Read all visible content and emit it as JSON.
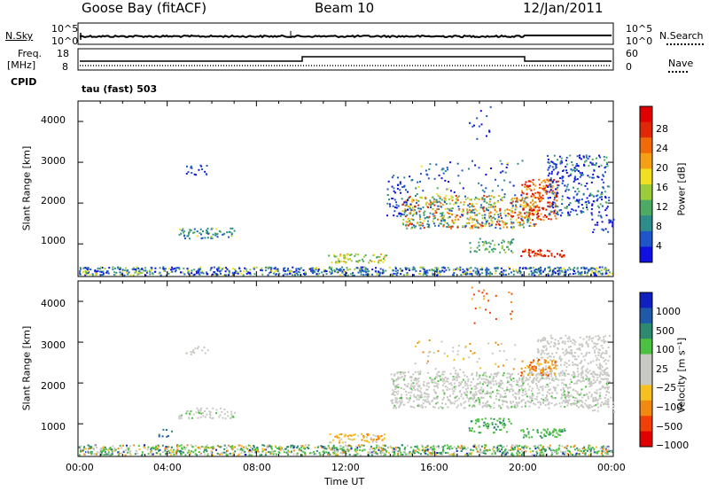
{
  "header": {
    "station": "Goose Bay (fitACF)",
    "beam": "Beam 10",
    "date": "12/Jan/2011"
  },
  "nsky_panel": {
    "left_label": "N.Sky",
    "right_label": "N.Search",
    "left_ticks": [
      "10^5",
      "10^0"
    ],
    "right_ticks": [
      "10^5",
      "10^0"
    ]
  },
  "freq_panel": {
    "left_label_1": "Freq.",
    "left_label_2": "[MHz]",
    "right_label": "Nave",
    "left_ticks": [
      "18",
      "8"
    ],
    "right_ticks": [
      "60",
      "0"
    ]
  },
  "cpid": {
    "label": "CPID",
    "mode": "tau (fast) 503"
  },
  "colors": {
    "power_scale": [
      "#1010e0",
      "#1e55c8",
      "#2e8c8a",
      "#4caa64",
      "#9ccc3c",
      "#f0e020",
      "#f5a014",
      "#f06a0a",
      "#e02808",
      "#e00000"
    ],
    "velocity_scale": [
      "#1020c0",
      "#1e5aa8",
      "#2e8a6e",
      "#4cc040",
      "#c8c8c4",
      "#c8c8c4",
      "#f5c020",
      "#f08a10",
      "#f04008",
      "#e00000"
    ]
  },
  "chart_data": [
    {
      "type": "heatmap",
      "name_role": "power",
      "title": "",
      "xlabel": "",
      "ylabel": "Slant Range [km]",
      "ylim": [
        200,
        4500
      ],
      "xlim": [
        0,
        24
      ],
      "yticks": [
        "4000",
        "3000",
        "2000",
        "1000"
      ],
      "colorbar_label": "Power [dB]",
      "colorbar_ticks": [
        "28",
        "24",
        "20",
        "16",
        "12",
        "8",
        "4"
      ]
    },
    {
      "type": "heatmap",
      "name_role": "velocity",
      "title": "",
      "xlabel": "Time UT",
      "ylabel": "Slant Range [km]",
      "ylim": [
        200,
        4500
      ],
      "xlim": [
        0,
        24
      ],
      "yticks": [
        "4000",
        "3000",
        "2000",
        "1000"
      ],
      "xticks": [
        "00:00",
        "04:00",
        "08:00",
        "12:00",
        "16:00",
        "20:00",
        "00:00"
      ],
      "colorbar_label": "Velocity [m s⁻¹]",
      "colorbar_ticks": [
        "1000",
        "500",
        "100",
        "25",
        "−25",
        "−100",
        "−500",
        "−1000"
      ]
    }
  ]
}
